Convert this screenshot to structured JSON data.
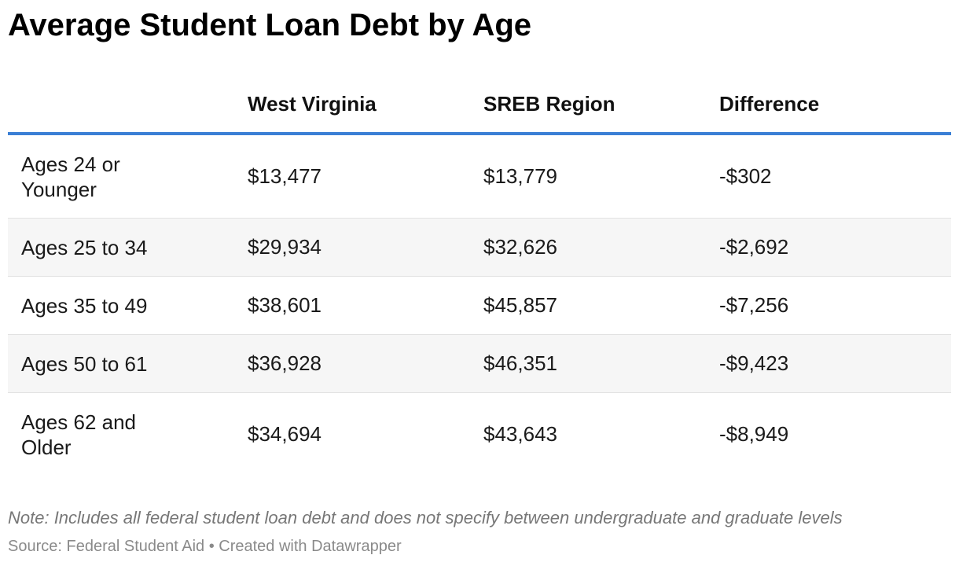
{
  "header": {
    "title": "Average Student Loan Debt by Age"
  },
  "table": {
    "columns": [
      "",
      "West Virginia",
      "SREB Region",
      "Difference"
    ],
    "rows": [
      [
        "Ages 24 or Younger",
        "$13,477",
        "$13,779",
        "-$302"
      ],
      [
        "Ages 25 to 34",
        "$29,934",
        "$32,626",
        "-$2,692"
      ],
      [
        "Ages 35 to 49",
        "$38,601",
        "$45,857",
        "-$7,256"
      ],
      [
        "Ages 50 to 61",
        "$36,928",
        "$46,351",
        "-$9,423"
      ],
      [
        "Ages 62 and Older",
        "$34,694",
        "$43,643",
        "-$8,949"
      ]
    ]
  },
  "footer": {
    "note": "Note: Includes all federal student loan debt and does not specify between undergraduate and graduate levels",
    "source": "Source: Federal Student Aid • Created with Datawrapper"
  }
}
